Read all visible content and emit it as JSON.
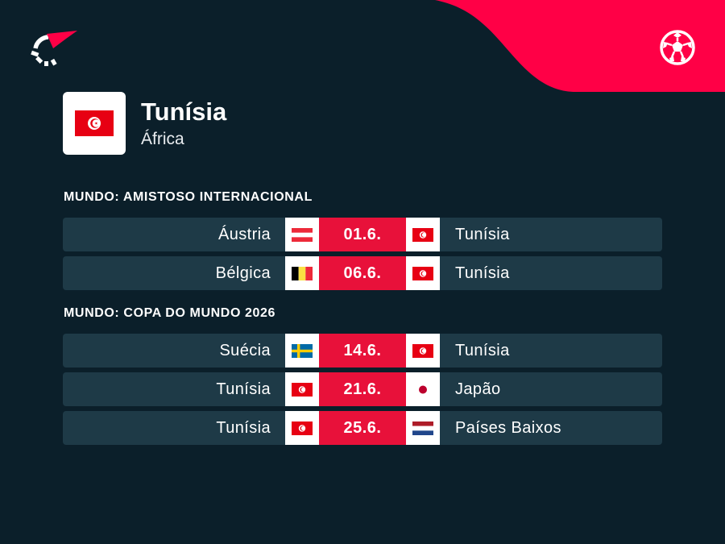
{
  "brand": {
    "accent": "#e8113a",
    "background": "#0b1f2a",
    "row_background": "#1e3a47",
    "logo_icon": "flashscore-logo-icon",
    "sport_icon": "soccer-ball-icon"
  },
  "team": {
    "name": "Tunísia",
    "region": "África",
    "flag": "tunisia-flag-icon"
  },
  "sections": [
    {
      "title": "MUNDO: AMISTOSO INTERNACIONAL",
      "matches": [
        {
          "home": "Áustria",
          "home_flag": "austria",
          "date": "01.6.",
          "away": "Tunísia",
          "away_flag": "tunisia"
        },
        {
          "home": "Bélgica",
          "home_flag": "belgium",
          "date": "06.6.",
          "away": "Tunísia",
          "away_flag": "tunisia"
        }
      ]
    },
    {
      "title": "MUNDO: COPA DO MUNDO 2026",
      "matches": [
        {
          "home": "Suécia",
          "home_flag": "sweden",
          "date": "14.6.",
          "away": "Tunísia",
          "away_flag": "tunisia"
        },
        {
          "home": "Tunísia",
          "home_flag": "tunisia",
          "date": "21.6.",
          "away": "Japão",
          "away_flag": "japan"
        },
        {
          "home": "Tunísia",
          "home_flag": "tunisia",
          "date": "25.6.",
          "away": "Países Baixos",
          "away_flag": "netherlands"
        }
      ]
    }
  ]
}
